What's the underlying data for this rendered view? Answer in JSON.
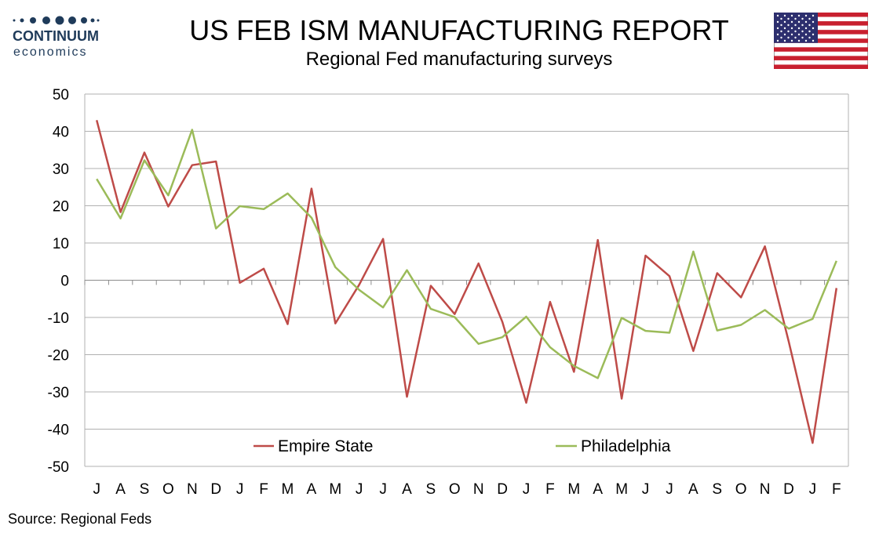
{
  "logo": {
    "name": "CONTINUUM",
    "sub": "economics"
  },
  "title": "US FEB ISM MANUFACTURING REPORT",
  "subtitle": "Regional Fed manufacturing surveys",
  "source": "Source: Regional Feds",
  "colors": {
    "empire": "#be4b48",
    "philadelphia": "#9bbb59",
    "grid": "#b0b0b0",
    "logo": "#1f3b5a"
  },
  "chart_data": {
    "type": "line",
    "x": [
      "J",
      "A",
      "S",
      "O",
      "N",
      "D",
      "J",
      "F",
      "M",
      "A",
      "M",
      "J",
      "J",
      "A",
      "S",
      "O",
      "N",
      "D",
      "J",
      "F",
      "M",
      "A",
      "M",
      "J",
      "J",
      "A",
      "S",
      "O",
      "N",
      "D",
      "J",
      "F"
    ],
    "ylim": [
      -50,
      50
    ],
    "yticks": [
      50,
      40,
      30,
      20,
      10,
      0,
      -10,
      -20,
      -30,
      -40,
      -50
    ],
    "grid": true,
    "legend_position": "bottom",
    "series": [
      {
        "name": "Empire State",
        "values": [
          43.0,
          18.3,
          34.3,
          19.8,
          30.9,
          31.9,
          -0.7,
          3.1,
          -11.8,
          24.6,
          -11.6,
          -1.2,
          11.1,
          -31.3,
          -1.5,
          -9.1,
          4.5,
          -11.2,
          -32.9,
          -5.8,
          -24.6,
          10.8,
          -31.8,
          6.6,
          1.1,
          -19.0,
          1.9,
          -4.6,
          9.1,
          -16.5,
          -43.7,
          -2.1
        ]
      },
      {
        "name": "Philadelphia",
        "values": [
          27.2,
          16.6,
          32.2,
          22.8,
          40.4,
          13.9,
          19.9,
          19.1,
          23.3,
          16.8,
          3.5,
          -2.6,
          -7.3,
          2.7,
          -7.7,
          -9.9,
          -17.1,
          -15.3,
          -9.8,
          -18.0,
          -23.0,
          -26.3,
          -10.1,
          -13.6,
          -14.1,
          7.7,
          -13.5,
          -12.0,
          -8.0,
          -13.0,
          -10.4,
          5.2
        ]
      }
    ]
  }
}
